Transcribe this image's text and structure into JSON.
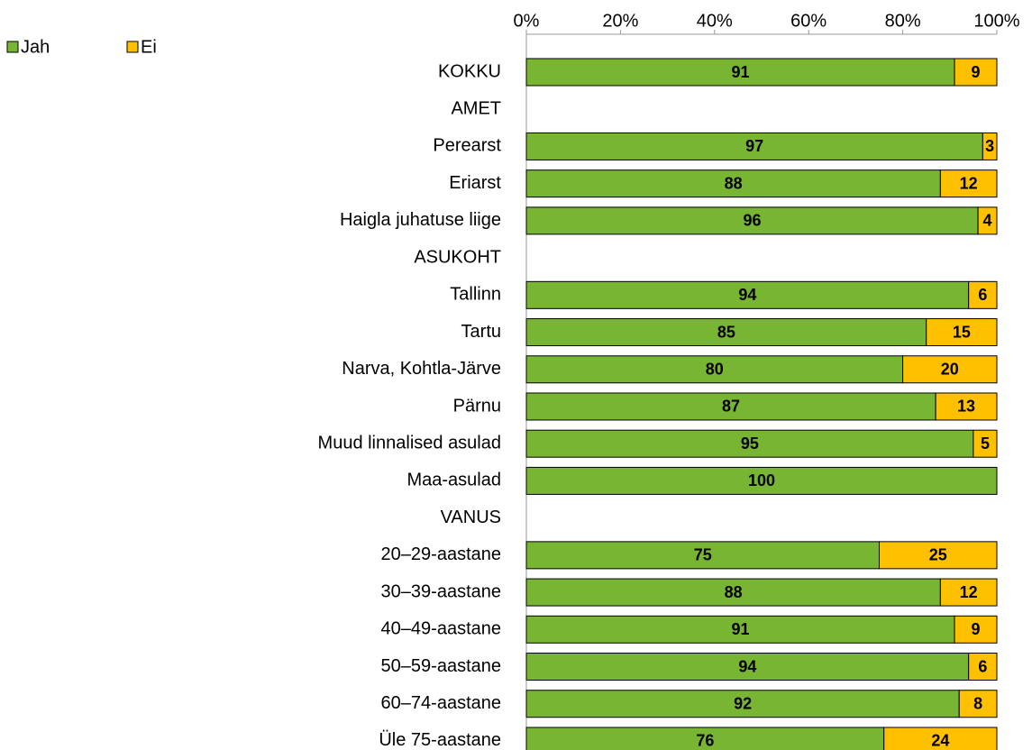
{
  "chart_data": {
    "type": "bar",
    "orientation": "horizontal",
    "stacked": true,
    "categories": [
      "KOKKU",
      "AMET",
      "Perearst",
      "Eriarst",
      "Haigla juhatuse liige",
      "ASUKOHT",
      "Tallinn",
      "Tartu",
      "Narva, Kohtla-Järve",
      "Pärnu",
      "Muud linnalised asulad",
      "Maa-asulad",
      "VANUS",
      "20–29-aastane",
      "30–39-aastane",
      "40–49-aastane",
      "50–59-aastane",
      "60–74-aastane",
      "Üle 75-aastane"
    ],
    "series": [
      {
        "name": "Jah",
        "color": "#77b533",
        "values": [
          91,
          null,
          97,
          88,
          96,
          null,
          94,
          85,
          80,
          87,
          95,
          100,
          null,
          75,
          88,
          91,
          94,
          92,
          76
        ]
      },
      {
        "name": "Ei",
        "color": "#ffc000",
        "values": [
          9,
          null,
          3,
          12,
          4,
          null,
          6,
          15,
          20,
          13,
          5,
          null,
          null,
          25,
          12,
          9,
          6,
          8,
          24
        ]
      }
    ],
    "xlim": [
      0,
      100
    ],
    "xticks": [
      {
        "value": 0,
        "label": "0%"
      },
      {
        "value": 20,
        "label": "20%"
      },
      {
        "value": 40,
        "label": "40%"
      },
      {
        "value": 60,
        "label": "60%"
      },
      {
        "value": 80,
        "label": "80%"
      },
      {
        "value": 100,
        "label": "100%"
      }
    ],
    "legend": "top-left"
  }
}
